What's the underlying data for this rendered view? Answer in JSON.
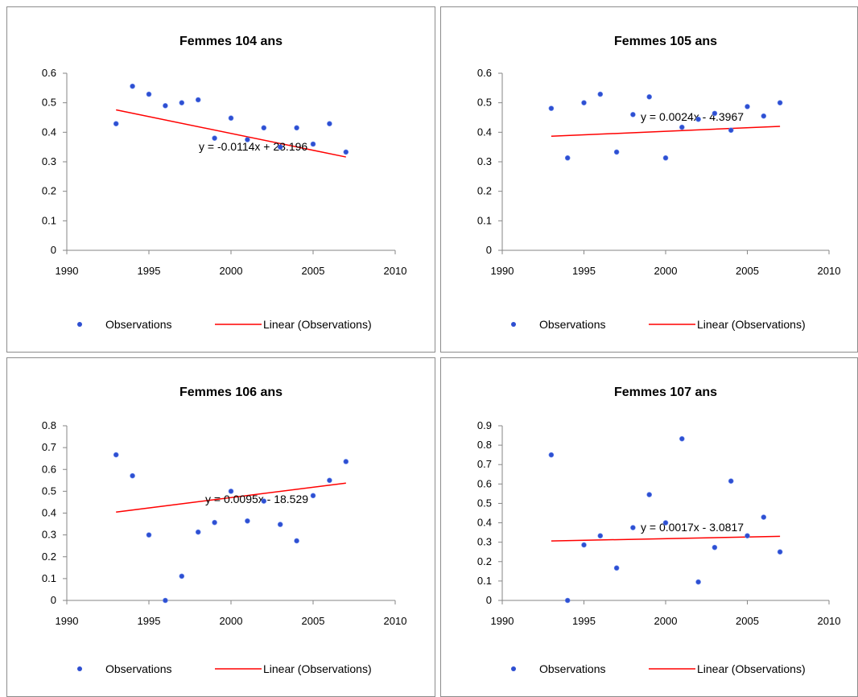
{
  "chart_data": [
    {
      "type": "scatter",
      "title": "Femmes 104 ans",
      "xlim": [
        1990,
        2010
      ],
      "ylim": [
        0,
        0.6
      ],
      "x_ticks": [
        "1990",
        "1995",
        "2000",
        "2005",
        "2010"
      ],
      "y_ticks": [
        "0",
        "0.1",
        "0.2",
        "0.3",
        "0.4",
        "0.5",
        "0.6"
      ],
      "series": [
        {
          "name": "Observations",
          "x": [
            1993,
            1994,
            1995,
            1996,
            1997,
            1998,
            1999,
            2000,
            2001,
            2002,
            2003,
            2004,
            2005,
            2006,
            2007
          ],
          "y": [
            0.429,
            0.556,
            0.529,
            0.49,
            0.5,
            0.51,
            0.38,
            0.448,
            0.375,
            0.415,
            0.35,
            0.415,
            0.36,
            0.429,
            0.333
          ]
        }
      ],
      "trendline": {
        "name": "Linear (Observations)",
        "slope": -0.0114,
        "intercept": 23.196,
        "x_range": [
          1993,
          2007
        ],
        "color": "#ff0000"
      },
      "equation": "y = -0.0114x + 23.196",
      "legend": [
        "Observations",
        "Linear (Observations)"
      ],
      "legend_position": "bottom",
      "marker_color": "#2e4fd1",
      "grid": false
    },
    {
      "type": "scatter",
      "title": "Femmes 105 ans",
      "xlim": [
        1990,
        2010
      ],
      "ylim": [
        0,
        0.6
      ],
      "x_ticks": [
        "1990",
        "1995",
        "2000",
        "2005",
        "2010"
      ],
      "y_ticks": [
        "0",
        "0.1",
        "0.2",
        "0.3",
        "0.4",
        "0.5",
        "0.6"
      ],
      "series": [
        {
          "name": "Observations",
          "x": [
            1993,
            1994,
            1995,
            1996,
            1997,
            1998,
            1999,
            2000,
            2001,
            2002,
            2003,
            2004,
            2005,
            2006,
            2007
          ],
          "y": [
            0.481,
            0.313,
            0.5,
            0.529,
            0.333,
            0.46,
            0.52,
            0.313,
            0.417,
            0.444,
            0.464,
            0.407,
            0.487,
            0.455,
            0.5
          ]
        }
      ],
      "trendline": {
        "name": "Linear (Observations)",
        "slope": 0.0024,
        "intercept": -4.3967,
        "x_range": [
          1993,
          2007
        ],
        "color": "#ff0000"
      },
      "equation": "y = 0.0024x - 4.3967",
      "legend": [
        "Observations",
        "Linear (Observations)"
      ],
      "legend_position": "bottom",
      "marker_color": "#2e4fd1",
      "grid": false
    },
    {
      "type": "scatter",
      "title": "Femmes 106 ans",
      "xlim": [
        1990,
        2010
      ],
      "ylim": [
        0,
        0.8
      ],
      "x_ticks": [
        "1990",
        "1995",
        "2000",
        "2005",
        "2010"
      ],
      "y_ticks": [
        "0",
        "0.1",
        "0.2",
        "0.3",
        "0.4",
        "0.5",
        "0.6",
        "0.7",
        "0.8"
      ],
      "series": [
        {
          "name": "Observations",
          "x": [
            1993,
            1994,
            1995,
            1996,
            1997,
            1998,
            1999,
            2000,
            2001,
            2002,
            2003,
            2004,
            2005,
            2006,
            2007
          ],
          "y": [
            0.667,
            0.571,
            0.3,
            0.0,
            0.111,
            0.313,
            0.357,
            0.5,
            0.364,
            0.455,
            0.348,
            0.273,
            0.48,
            0.55,
            0.636
          ]
        }
      ],
      "trendline": {
        "name": "Linear (Observations)",
        "slope": 0.0095,
        "intercept": -18.529,
        "x_range": [
          1993,
          2007
        ],
        "color": "#ff0000"
      },
      "equation": "y = 0.0095x - 18.529",
      "legend": [
        "Observations",
        "Linear (Observations)"
      ],
      "legend_position": "bottom",
      "marker_color": "#2e4fd1",
      "grid": false
    },
    {
      "type": "scatter",
      "title": "Femmes 107 ans",
      "xlim": [
        1990,
        2010
      ],
      "ylim": [
        0,
        0.9
      ],
      "x_ticks": [
        "1990",
        "1995",
        "2000",
        "2005",
        "2010"
      ],
      "y_ticks": [
        "0",
        "0.1",
        "0.2",
        "0.3",
        "0.4",
        "0.5",
        "0.6",
        "0.7",
        "0.8",
        "0.9"
      ],
      "series": [
        {
          "name": "Observations",
          "x": [
            1993,
            1994,
            1995,
            1996,
            1997,
            1998,
            1999,
            2000,
            2001,
            2002,
            2003,
            2004,
            2005,
            2006,
            2007
          ],
          "y": [
            0.75,
            0.0,
            0.286,
            0.333,
            0.167,
            0.375,
            0.545,
            0.4,
            0.833,
            0.095,
            0.273,
            0.615,
            0.333,
            0.429,
            0.25
          ]
        }
      ],
      "trendline": {
        "name": "Linear (Observations)",
        "slope": 0.0017,
        "intercept": -3.0817,
        "x_range": [
          1993,
          2007
        ],
        "color": "#ff0000"
      },
      "equation": "y = 0.0017x - 3.0817",
      "legend": [
        "Observations",
        "Linear (Observations)"
      ],
      "legend_position": "bottom",
      "marker_color": "#2e4fd1",
      "grid": false
    }
  ]
}
